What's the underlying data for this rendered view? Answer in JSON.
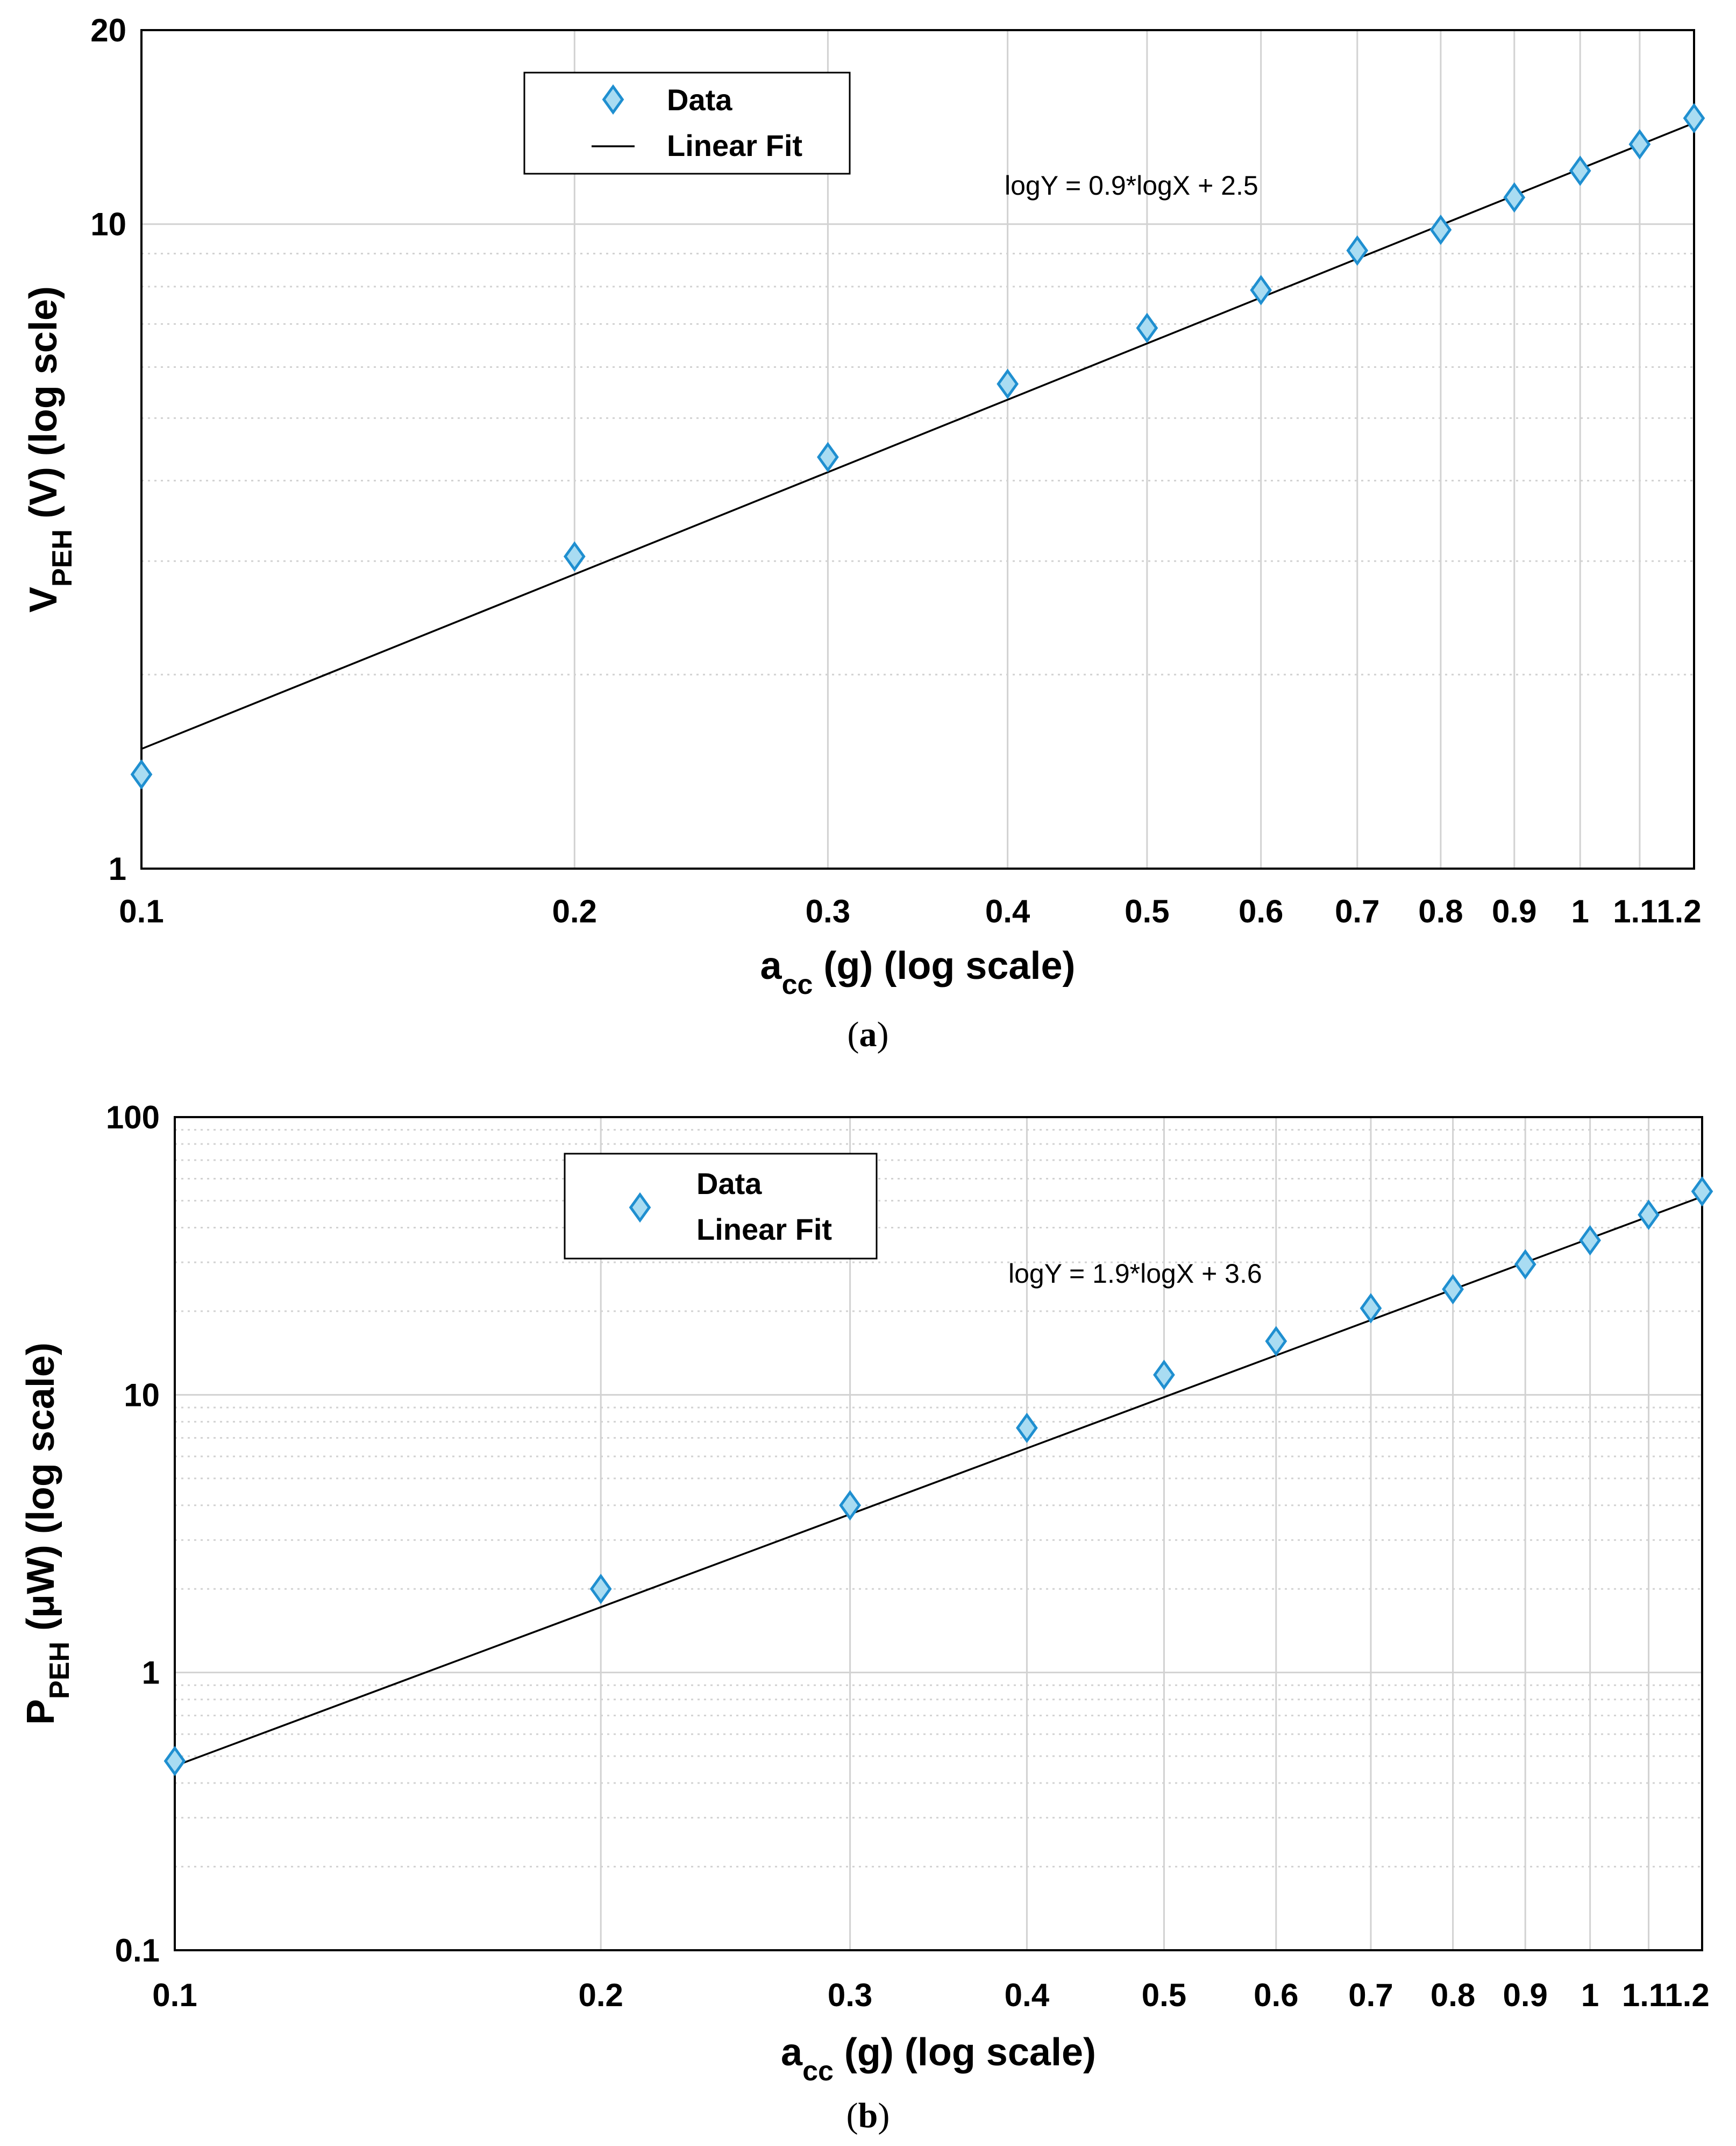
{
  "colors": {
    "marker_fill": "#a9dcf2",
    "marker_stroke": "#1f8fd0",
    "grid": "#d2d2d2",
    "fit_line": "#000000"
  },
  "chart_data": [
    {
      "id": "a",
      "type": "scatter",
      "caption": "a",
      "xscale": "log",
      "yscale": "log",
      "xlim": [
        0.1,
        1.2
      ],
      "ylim": [
        1,
        20
      ],
      "xticks": [
        0.1,
        0.2,
        0.3,
        0.4,
        0.5,
        0.6,
        0.7,
        0.8,
        0.9,
        1,
        1.1,
        1.2
      ],
      "xtick_labels": [
        "0.1",
        "0.2",
        "0.3",
        "0.4",
        "0.5",
        "0.6",
        "0.7",
        "0.8",
        "0.9",
        "1",
        "1.1",
        "1.2"
      ],
      "yticks": [
        1,
        10,
        20
      ],
      "ytick_labels": [
        "1",
        "10",
        "20"
      ],
      "yminor": [
        2,
        3,
        4,
        5,
        6,
        7,
        8,
        9
      ],
      "xlabel": {
        "main": "a",
        "sub": "cc",
        "rest": " (g)   (log scale)"
      },
      "ylabel": {
        "main": "V",
        "sub": "PEH",
        "rest": " (V)   (log scle)"
      },
      "legend": {
        "position": "top-left",
        "entries": [
          "Data",
          "Linear Fit"
        ],
        "line_sample": true
      },
      "annotation": "logY = 0.9*logX + 2.5",
      "series": [
        {
          "name": "Data",
          "x": [
            0.1,
            0.2,
            0.3,
            0.4,
            0.5,
            0.6,
            0.7,
            0.8,
            0.9,
            1.0,
            1.1,
            1.2
          ],
          "y": [
            1.4,
            3.05,
            4.35,
            5.65,
            6.9,
            7.9,
            9.1,
            9.8,
            11.0,
            12.1,
            13.3,
            14.6
          ]
        }
      ],
      "fit": {
        "name": "Linear Fit",
        "slope": 0.9,
        "intercept": 2.5,
        "x": [
          0.1,
          1.2
        ]
      }
    },
    {
      "id": "b",
      "type": "scatter",
      "caption": "b",
      "xscale": "log",
      "yscale": "log",
      "xlim": [
        0.1,
        1.2
      ],
      "ylim": [
        0.1,
        100
      ],
      "xticks": [
        0.1,
        0.2,
        0.3,
        0.4,
        0.5,
        0.6,
        0.7,
        0.8,
        0.9,
        1,
        1.1,
        1.2
      ],
      "xtick_labels": [
        "0.1",
        "0.2",
        "0.3",
        "0.4",
        "0.5",
        "0.6",
        "0.7",
        "0.8",
        "0.9",
        "1",
        "1.1",
        "1.2"
      ],
      "yticks": [
        0.1,
        1,
        10,
        100
      ],
      "ytick_labels": [
        "0.1",
        "1",
        "10",
        "100"
      ],
      "yminor": [
        0.2,
        0.3,
        0.4,
        0.5,
        0.6,
        0.7,
        0.8,
        0.9,
        2,
        3,
        4,
        5,
        6,
        7,
        8,
        9,
        20,
        30,
        40,
        50,
        60,
        70,
        80,
        90
      ],
      "xlabel": {
        "main": "a",
        "sub": "cc",
        "rest": " (g)   (log scale)"
      },
      "ylabel": {
        "main": "P",
        "sub": "PEH",
        "rest": " (μW)   (log scale)"
      },
      "legend": {
        "position": "top-left",
        "entries": [
          "Data",
          "Linear Fit"
        ],
        "line_sample": false
      },
      "annotation": "logY = 1.9*logX + 3.6",
      "series": [
        {
          "name": "Data",
          "x": [
            0.1,
            0.2,
            0.3,
            0.4,
            0.5,
            0.6,
            0.7,
            0.8,
            0.9,
            1.0,
            1.1,
            1.2
          ],
          "y": [
            0.48,
            2.0,
            4.0,
            7.6,
            11.8,
            15.6,
            20.5,
            24.0,
            29.5,
            36.0,
            44.5,
            54.0
          ]
        }
      ],
      "fit": {
        "name": "Linear Fit",
        "slope": 1.9,
        "intercept": 3.6,
        "x": [
          0.1,
          1.2
        ]
      }
    }
  ]
}
